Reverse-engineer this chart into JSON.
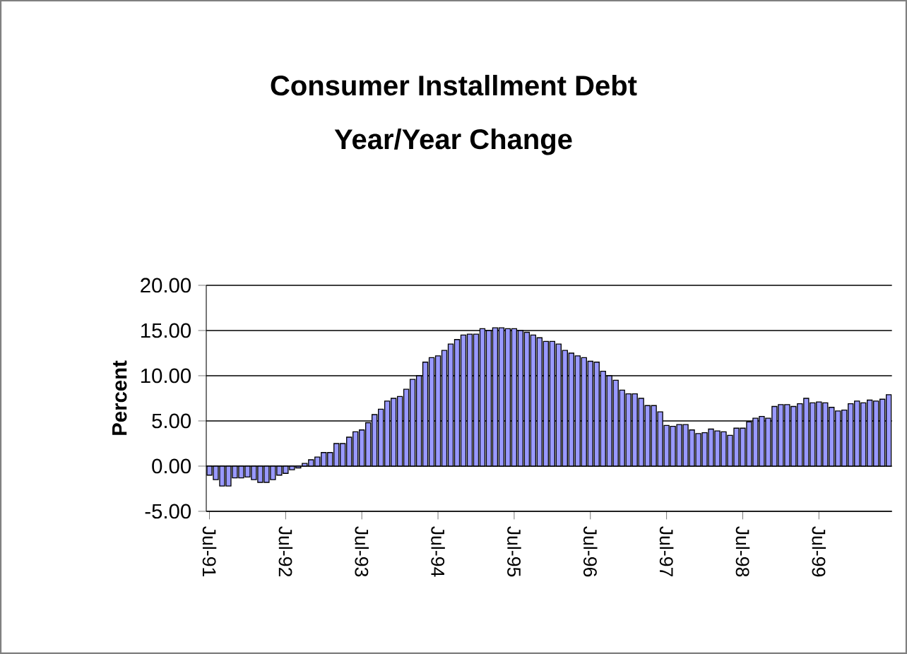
{
  "chart_data": {
    "type": "bar",
    "title": "Consumer Installment Debt",
    "subtitle": "Year/Year Change",
    "ylabel": "Percent",
    "categories": [
      "Jul-91",
      null,
      null,
      null,
      null,
      null,
      null,
      null,
      null,
      null,
      null,
      null,
      "Jul-92",
      null,
      null,
      null,
      null,
      null,
      null,
      null,
      null,
      null,
      null,
      null,
      "Jul-93",
      null,
      null,
      null,
      null,
      null,
      null,
      null,
      null,
      null,
      null,
      null,
      "Jul-94",
      null,
      null,
      null,
      null,
      null,
      null,
      null,
      null,
      null,
      null,
      null,
      "Jul-95",
      null,
      null,
      null,
      null,
      null,
      null,
      null,
      null,
      null,
      null,
      null,
      "Jul-96",
      null,
      null,
      null,
      null,
      null,
      null,
      null,
      null,
      null,
      null,
      null,
      "Jul-97",
      null,
      null,
      null,
      null,
      null,
      null,
      null,
      null,
      null,
      null,
      null,
      "Jul-98",
      null,
      null,
      null,
      null,
      null,
      null,
      null,
      null,
      null,
      null,
      null,
      "Jul-99",
      null,
      null,
      null,
      null,
      null,
      null,
      null,
      null,
      null,
      null,
      null
    ],
    "values": [
      -1.0,
      -1.5,
      -2.2,
      -2.2,
      -1.3,
      -1.3,
      -1.2,
      -1.5,
      -1.8,
      -1.8,
      -1.5,
      -1.0,
      -0.8,
      -0.4,
      -0.2,
      0.3,
      0.7,
      1.0,
      1.5,
      1.5,
      2.5,
      2.5,
      3.2,
      3.8,
      4.0,
      4.8,
      5.7,
      6.3,
      7.2,
      7.5,
      7.7,
      8.5,
      9.6,
      10.0,
      11.5,
      12.0,
      12.2,
      12.8,
      13.5,
      14.0,
      14.5,
      14.6,
      14.6,
      15.2,
      15.0,
      15.3,
      15.3,
      15.2,
      15.2,
      15.0,
      14.8,
      14.5,
      14.2,
      13.8,
      13.8,
      13.5,
      12.8,
      12.5,
      12.2,
      12.0,
      11.6,
      11.5,
      10.5,
      10.0,
      9.5,
      8.4,
      8.0,
      8.0,
      7.5,
      6.7,
      6.7,
      6.0,
      4.5,
      4.4,
      4.6,
      4.6,
      4.0,
      3.6,
      3.7,
      4.1,
      3.9,
      3.8,
      3.4,
      4.2,
      4.2,
      4.9,
      5.3,
      5.5,
      5.3,
      6.6,
      6.8,
      6.8,
      6.6,
      6.9,
      7.5,
      7.0,
      7.1,
      7.0,
      6.5,
      6.1,
      6.2,
      6.9,
      7.2,
      7.0,
      7.3,
      7.2,
      7.4,
      7.9
    ],
    "color": "#9999ff",
    "ylim": [
      -5,
      20
    ],
    "yticks": [
      {
        "value": -5,
        "label": "-5.00"
      },
      {
        "value": 0,
        "label": "0.00"
      },
      {
        "value": 5,
        "label": "5.00"
      },
      {
        "value": 10,
        "label": "10.00"
      },
      {
        "value": 15,
        "label": "15.00"
      },
      {
        "value": 20,
        "label": "20.00"
      }
    ],
    "grid": "y"
  }
}
